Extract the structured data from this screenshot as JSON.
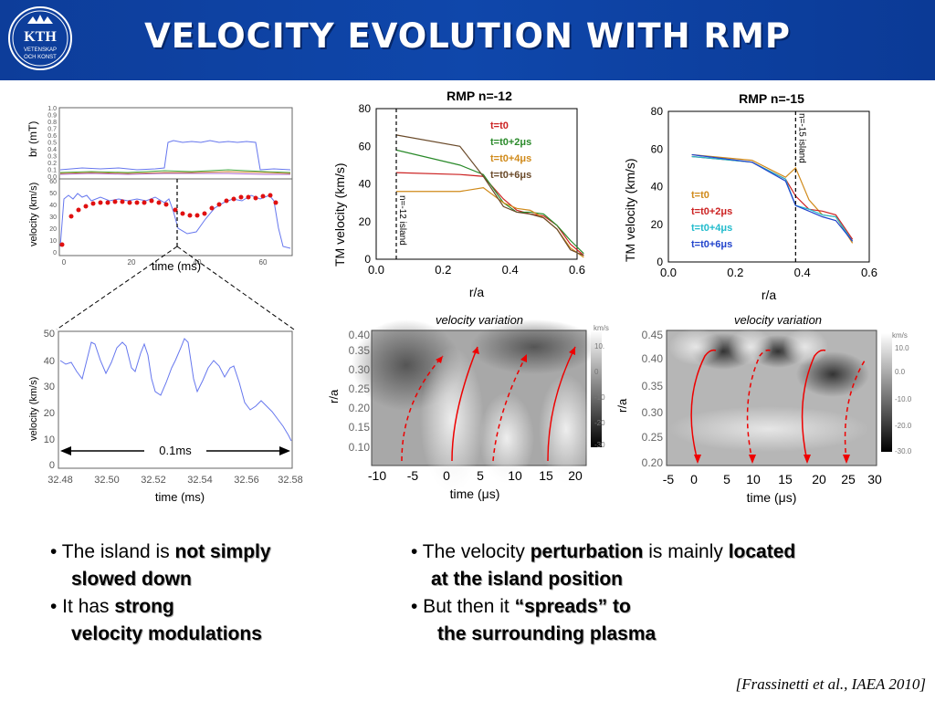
{
  "header": {
    "title": "VELOCITY EVOLUTION WITH RMP",
    "logo": {
      "lines": [
        "KTH",
        "VETENSKAP",
        "OCH KONST"
      ]
    }
  },
  "panel_br_velocity": {
    "ylabel_top": "br  (mT)",
    "ylabel_bottom": "velocity (km/s)",
    "xlabel": "time (ms)",
    "top_ticks": [
      "1.0",
      "0.9",
      "0.8",
      "0.7",
      "0.6",
      "0.5",
      "0.4",
      "0.3",
      "0.2",
      "0.1",
      "0.0"
    ],
    "bottom_ticks": [
      "60",
      "50",
      "40",
      "30",
      "20",
      "10",
      "0"
    ],
    "x_ticks": [
      "0",
      "20",
      "40",
      "60"
    ]
  },
  "panel_zoom": {
    "ylabel": "velocity (km/s)",
    "xlabel": "time (ms)",
    "annotation": "0.1ms",
    "y_ticks": [
      "50",
      "40",
      "30",
      "20",
      "10",
      "0"
    ],
    "x_ticks": [
      "32.48",
      "32.50",
      "32.52",
      "32.54",
      "32.56",
      "32.58"
    ]
  },
  "chart_data": [
    {
      "type": "line",
      "title": "RMP n=-12",
      "xlabel": "r/a",
      "ylabel": "TM velocity (km/s)",
      "xlim": [
        0.0,
        0.6
      ],
      "ylim": [
        0,
        80
      ],
      "x_ticks": [
        "0.0",
        "0.2",
        "0.4",
        "0.6"
      ],
      "y_ticks": [
        "0",
        "20",
        "40",
        "60",
        "80"
      ],
      "annotation": "n=-12 island",
      "island_r": 0.06,
      "series": [
        {
          "name": "t=t0",
          "color": "#cc2222",
          "x": [
            0.06,
            0.25,
            0.32,
            0.38,
            0.42,
            0.46,
            0.5,
            0.54,
            0.58,
            0.62
          ],
          "y": [
            46,
            45,
            44,
            32,
            26,
            24,
            23,
            18,
            8,
            2
          ]
        },
        {
          "name": "t=t0+2μs",
          "color": "#2a8a2a",
          "x": [
            0.06,
            0.25,
            0.32,
            0.38,
            0.42,
            0.46,
            0.5,
            0.54,
            0.58,
            0.62
          ],
          "y": [
            58,
            50,
            45,
            30,
            25,
            25,
            24,
            18,
            10,
            3
          ]
        },
        {
          "name": "t=t0+4μs",
          "color": "#d08a1a",
          "x": [
            0.06,
            0.25,
            0.32,
            0.38,
            0.42,
            0.46,
            0.5,
            0.54,
            0.58,
            0.62
          ],
          "y": [
            36,
            36,
            38,
            30,
            27,
            26,
            22,
            16,
            6,
            1
          ]
        },
        {
          "name": "t=t0+6μs",
          "color": "#6a4a2a",
          "x": [
            0.06,
            0.25,
            0.32,
            0.38,
            0.42,
            0.46,
            0.5,
            0.54,
            0.58,
            0.62
          ],
          "y": [
            66,
            60,
            44,
            28,
            25,
            24,
            22,
            16,
            5,
            2
          ]
        }
      ]
    },
    {
      "type": "line",
      "title": "RMP n=-15",
      "xlabel": "r/a",
      "ylabel": "TM velocity (km/s)",
      "xlim": [
        0.0,
        0.6
      ],
      "ylim": [
        0,
        80
      ],
      "x_ticks": [
        "0.0",
        "0.2",
        "0.4",
        "0.6"
      ],
      "y_ticks": [
        "0",
        "20",
        "40",
        "60",
        "80"
      ],
      "annotation": "n=-15 island",
      "island_r": 0.38,
      "series": [
        {
          "name": "t=t0",
          "color": "#d08a1a",
          "x": [
            0.07,
            0.25,
            0.35,
            0.38,
            0.42,
            0.46,
            0.5,
            0.55
          ],
          "y": [
            57,
            54,
            45,
            50,
            33,
            25,
            24,
            10
          ]
        },
        {
          "name": "t=t0+2μs",
          "color": "#cc2222",
          "x": [
            0.07,
            0.25,
            0.35,
            0.38,
            0.42,
            0.46,
            0.5,
            0.55
          ],
          "y": [
            56,
            53,
            44,
            35,
            28,
            27,
            25,
            12
          ]
        },
        {
          "name": "t=t0+4μs",
          "color": "#22bbcc",
          "x": [
            0.07,
            0.25,
            0.35,
            0.38,
            0.42,
            0.46,
            0.5,
            0.55
          ],
          "y": [
            56,
            53,
            44,
            30,
            28,
            25,
            24,
            11
          ]
        },
        {
          "name": "t=t0+6μs",
          "color": "#2244cc",
          "x": [
            0.07,
            0.25,
            0.35,
            0.38,
            0.42,
            0.46,
            0.5,
            0.55
          ],
          "y": [
            57,
            53,
            43,
            30,
            27,
            24,
            22,
            11
          ]
        }
      ]
    }
  ],
  "contour_left": {
    "title": "velocity variation",
    "xlabel": "time (μs)",
    "ylabel": "r/a",
    "x_ticks": [
      "-10",
      "-5",
      "0",
      "5",
      "10",
      "15",
      "20"
    ],
    "y_ticks": [
      "0.40",
      "0.35",
      "0.30",
      "0.25",
      "0.20",
      "0.15",
      "0.10"
    ],
    "cbar_label": "km/s",
    "cbar_ticks": [
      "10.",
      "0",
      "-10",
      "-20",
      "-30"
    ]
  },
  "contour_right": {
    "title": "velocity variation",
    "xlabel": "time (μs)",
    "ylabel": "r/a",
    "x_ticks": [
      "-5",
      "0",
      "5",
      "10",
      "15",
      "20",
      "25",
      "30"
    ],
    "y_ticks": [
      "0.45",
      "0.40",
      "0.35",
      "0.30",
      "0.25",
      "0.20"
    ],
    "cbar_label": "km/s",
    "cbar_ticks": [
      "10.0",
      "0.0",
      "-10.0",
      "-20.0",
      "-30.0"
    ]
  },
  "bullets_left": [
    {
      "pre": "• The island is ",
      "bold1": "not simply",
      "line2": "slowed down"
    },
    {
      "pre": "• It has ",
      "bold1": "strong",
      "line2": "velocity modulations"
    }
  ],
  "bullets_right": [
    {
      "pre": "• The velocity ",
      "bold1": "perturbation",
      "mid": " is mainly ",
      "bold2": "located",
      "line2": "at the island position"
    },
    {
      "pre": "• But then it ",
      "bold1": "“spreads” to",
      "line2": "the surrounding plasma"
    }
  ],
  "reference": "[Frassinetti et al., IAEA 2010]"
}
